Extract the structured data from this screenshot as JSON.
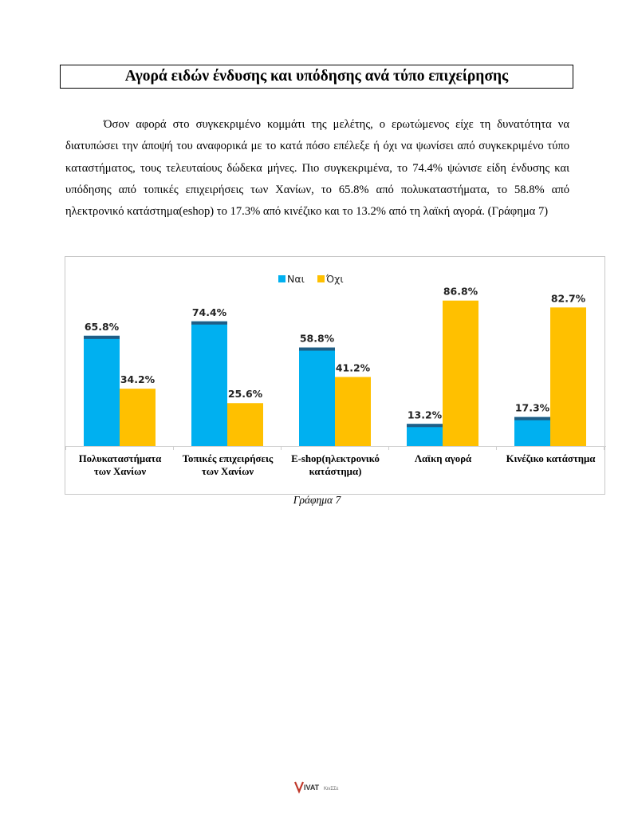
{
  "page": {
    "heading": "Αγορά ειδών ένδυσης και υπόδησης ανά τύπο επιχείρησης",
    "paragraph": "Όσον αφορά στο συγκεκριμένο κομμάτι της μελέτης, ο ερωτώμενος είχε τη δυνατότητα να διατυπώσει την άποψή του αναφορικά με το κατά πόσο επέλεξε ή όχι να ψωνίσει από συγκεκριμένο τύπο καταστήματος, τους τελευταίους δώδεκα μήνες. Πιο συγκεκριμένα, το 74.4% ψώνισε είδη ένδυσης και υπόδησης από τοπικές επιχειρήσεις των Χανίων, το 65.8% από πολυκαταστήματα, το 58.8% από ηλεκτρονικό κατάστημα(eshop) το 17.3% από κινέζικο και το 13.2% από τη λαϊκή αγορά. (Γράφημα 7)",
    "caption": "Γράφημα 7",
    "logo_text": "VIVATKινΣΣε"
  },
  "colors": {
    "series_yes": "#00B0F0",
    "series_yes_top": "#1F5E86",
    "series_no": "#FFC000"
  },
  "chart_data": {
    "type": "bar",
    "categories": [
      [
        "Πολυκαταστήματα",
        "των Χανίων"
      ],
      [
        "Τοπικές επιχειρήσεις",
        "των Χανίων"
      ],
      [
        "E-shop(ηλεκτρονικό",
        "κατάστημα)"
      ],
      [
        "Λαϊκη αγορά"
      ],
      [
        "Κινέζικο κατάστημα"
      ]
    ],
    "series": [
      {
        "name": "Ναι",
        "values": [
          65.8,
          74.4,
          58.8,
          13.2,
          17.3
        ],
        "labels": [
          "65.8%",
          "74.4%",
          "58.8%",
          "13.2%",
          "17.3%"
        ]
      },
      {
        "name": "Όχι",
        "values": [
          34.2,
          25.6,
          41.2,
          86.8,
          82.7
        ],
        "labels": [
          "34.2%",
          "25.6%",
          "41.2%",
          "86.8%",
          "82.7%"
        ]
      }
    ],
    "ylim": [
      0,
      100
    ],
    "legend": "top-center",
    "grid": false
  }
}
